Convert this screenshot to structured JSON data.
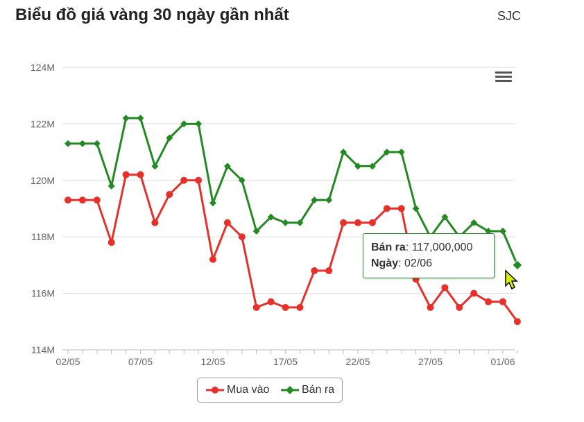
{
  "title": "Biểu đồ giá vàng 30 ngày gần nhất",
  "source_label": "SJC",
  "colors": {
    "buy": "#e8302b",
    "sell": "#238a23",
    "grid": "#d8d8d8",
    "axis_text": "#666666"
  },
  "tooltip": {
    "series_label": "Bán ra",
    "value": "117,000,000",
    "date_label": "Ngày",
    "date": "02/06"
  },
  "chart_data": {
    "type": "line",
    "y_tick_labels": [
      "114M",
      "116M",
      "118M",
      "120M",
      "122M",
      "124M"
    ],
    "x_tick_labels": [
      "02/05",
      "07/05",
      "12/05",
      "17/05",
      "22/05",
      "27/05",
      "01/06"
    ],
    "ylim": [
      114,
      124
    ],
    "grid": true,
    "legend_position": "bottom-center",
    "series": [
      {
        "name": "Mua vào",
        "color": "#e8302b",
        "marker": "circle",
        "values": [
          119.3,
          119.3,
          119.3,
          117.8,
          120.2,
          120.2,
          118.5,
          119.5,
          120.0,
          120.0,
          117.2,
          118.5,
          118.0,
          115.5,
          115.7,
          115.5,
          115.5,
          116.8,
          116.8,
          118.5,
          118.5,
          118.5,
          119.0,
          119.0,
          116.5,
          115.5,
          116.2,
          115.5,
          116.0,
          115.7,
          115.7,
          115.0
        ]
      },
      {
        "name": "Bán ra",
        "color": "#238a23",
        "marker": "diamond",
        "values": [
          121.3,
          121.3,
          121.3,
          119.8,
          122.2,
          122.2,
          120.5,
          121.5,
          122.0,
          122.0,
          119.2,
          120.5,
          120.0,
          118.2,
          118.7,
          118.5,
          118.5,
          119.3,
          119.3,
          121.0,
          120.5,
          120.5,
          121.0,
          121.0,
          119.0,
          118.0,
          118.7,
          118.0,
          118.5,
          118.2,
          118.2,
          117.0
        ]
      }
    ]
  }
}
